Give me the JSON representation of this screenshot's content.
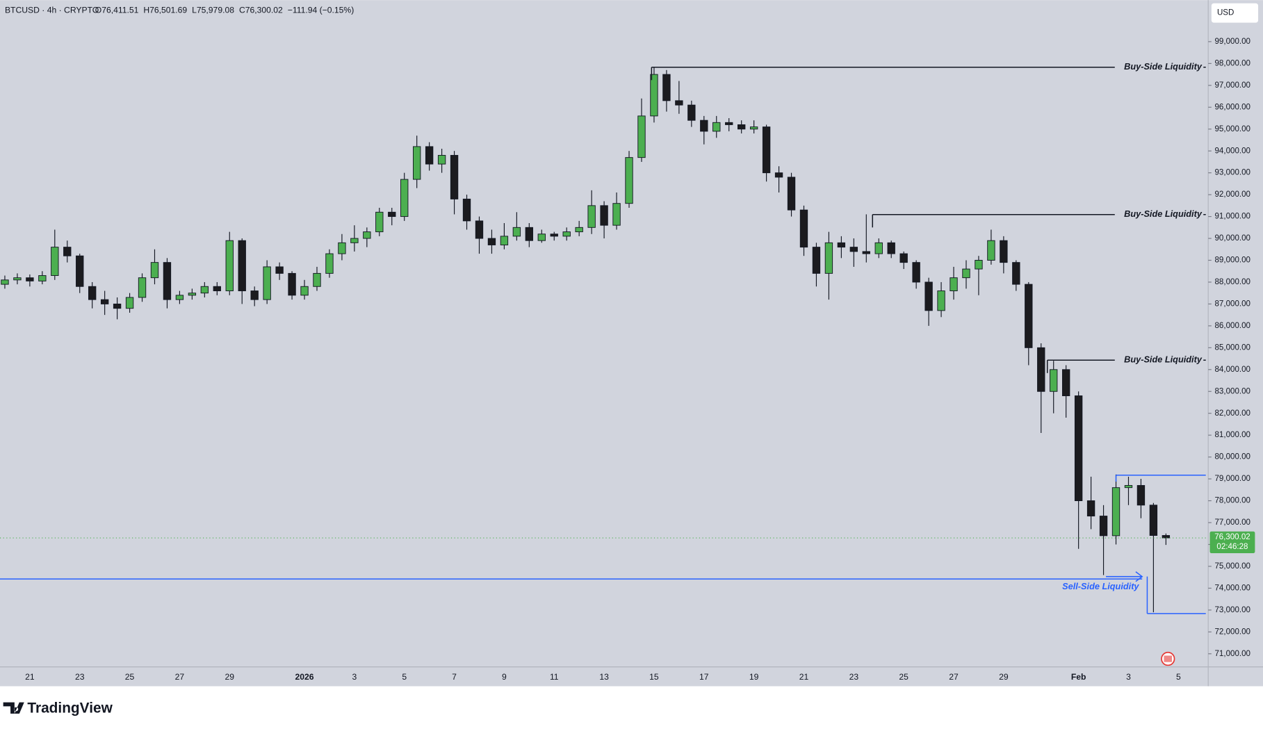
{
  "chart_data": {
    "type": "candlestick",
    "title": "BTCUSD · 4h · CRYPTO",
    "ohlc_header": [
      "O76,411.51",
      "H76,501.69",
      "L75,979.08",
      "C76,300.02",
      "−111.94 (−0.15%)"
    ],
    "currency": "USD",
    "brand": "TradingView",
    "last_price": {
      "value": 76300.02,
      "label": "76,300.02"
    },
    "countdown": "02:46:28",
    "up_color": "#4caf50",
    "down_color": "#1b1b1f",
    "ylim": [
      70400,
      100900
    ],
    "yticks": [
      {
        "value": 71000,
        "label": "71,000.00"
      },
      {
        "value": 72000,
        "label": "72,000.00"
      },
      {
        "value": 73000,
        "label": "73,000.00"
      },
      {
        "value": 74000,
        "label": "74,000.00"
      },
      {
        "value": 75000,
        "label": "75,000.00"
      },
      {
        "value": 76000,
        "label": "76,000.00"
      },
      {
        "value": 77000,
        "label": "77,000.00"
      },
      {
        "value": 78000,
        "label": "78,000.00"
      },
      {
        "value": 79000,
        "label": "79,000.00"
      },
      {
        "value": 80000,
        "label": "80,000.00"
      },
      {
        "value": 81000,
        "label": "81,000.00"
      },
      {
        "value": 82000,
        "label": "82,000.00"
      },
      {
        "value": 83000,
        "label": "83,000.00"
      },
      {
        "value": 84000,
        "label": "84,000.00"
      },
      {
        "value": 85000,
        "label": "85,000.00"
      },
      {
        "value": 86000,
        "label": "86,000.00"
      },
      {
        "value": 87000,
        "label": "87,000.00"
      },
      {
        "value": 88000,
        "label": "88,000.00"
      },
      {
        "value": 89000,
        "label": "89,000.00"
      },
      {
        "value": 90000,
        "label": "90,000.00"
      },
      {
        "value": 91000,
        "label": "91,000.00"
      },
      {
        "value": 92000,
        "label": "92,000.00"
      },
      {
        "value": 93000,
        "label": "93,000.00"
      },
      {
        "value": 94000,
        "label": "94,000.00"
      },
      {
        "value": 95000,
        "label": "95,000.00"
      },
      {
        "value": 96000,
        "label": "96,000.00"
      },
      {
        "value": 97000,
        "label": "97,000.00"
      },
      {
        "value": 98000,
        "label": "98,000.00"
      },
      {
        "value": 99000,
        "label": "99,000.00"
      }
    ],
    "categories": [
      null,
      null,
      "21",
      null,
      null,
      null,
      "23",
      null,
      null,
      null,
      "25",
      null,
      null,
      null,
      "27",
      null,
      null,
      null,
      "29",
      null,
      null,
      null,
      null,
      null,
      "2026",
      null,
      null,
      null,
      "3",
      null,
      null,
      null,
      "5",
      null,
      null,
      null,
      "7",
      null,
      null,
      null,
      "9",
      null,
      null,
      null,
      "11",
      null,
      null,
      null,
      "13",
      null,
      null,
      null,
      "15",
      null,
      null,
      null,
      "17",
      null,
      null,
      null,
      "19",
      null,
      null,
      null,
      "21",
      null,
      null,
      null,
      "23",
      null,
      null,
      null,
      "25",
      null,
      null,
      null,
      "27",
      null,
      null,
      null,
      "29",
      null,
      null,
      null,
      null,
      null,
      "Feb",
      null,
      null,
      null,
      "3",
      null,
      null,
      null,
      "5",
      null,
      null
    ],
    "open": [
      87900,
      88100,
      88200,
      88050,
      88300,
      89600,
      89200,
      87800,
      87200,
      87000,
      86800,
      87300,
      88200,
      88900,
      87200,
      87400,
      87500,
      87800,
      87600,
      89900,
      87600,
      87200,
      88700,
      88400,
      87400,
      87800,
      88400,
      89300,
      89800,
      90000,
      90300,
      91200,
      91000,
      92700,
      94200,
      93400,
      93800,
      91800,
      90800,
      90000,
      89700,
      90100,
      90500,
      89900,
      90200,
      90100,
      90300,
      90500,
      91500,
      90600,
      91600,
      93700,
      95600,
      97500,
      96300,
      96100,
      95400,
      94900,
      95300,
      95200,
      95000,
      95100,
      93000,
      92800,
      91300,
      89600,
      88400,
      89800,
      89600,
      89400,
      89300,
      89800,
      89300,
      88900,
      88000,
      86700,
      87600,
      88200,
      88600,
      89000,
      89900,
      88900,
      87900,
      85000,
      83000,
      84000,
      82800,
      78000,
      77300,
      76400,
      78600,
      78700,
      77800,
      76411.51,
      null,
      null,
      null
    ],
    "high": [
      88300,
      88400,
      88350,
      88500,
      90400,
      89900,
      89300,
      88000,
      87600,
      87300,
      87500,
      88400,
      89500,
      89100,
      87600,
      87700,
      88000,
      88000,
      90300,
      90000,
      87800,
      89000,
      88900,
      88500,
      88100,
      88700,
      89500,
      90200,
      90600,
      90500,
      91400,
      91400,
      93000,
      94700,
      94400,
      94100,
      94000,
      92000,
      91000,
      90400,
      90700,
      91200,
      90700,
      90400,
      90300,
      90500,
      90800,
      92200,
      91700,
      92100,
      94000,
      96400,
      97850,
      97700,
      97200,
      96300,
      95600,
      95600,
      95500,
      95400,
      95400,
      95200,
      93300,
      93000,
      91500,
      89800,
      90300,
      90100,
      90000,
      91100,
      90000,
      89900,
      89400,
      89000,
      88200,
      88000,
      88700,
      89000,
      89200,
      90400,
      90100,
      89000,
      88000,
      85200,
      84400,
      84200,
      83000,
      79100,
      77800,
      79200,
      79100,
      79000,
      77900,
      76501.69,
      null,
      null,
      null
    ],
    "low": [
      87700,
      87900,
      87800,
      87900,
      88100,
      88900,
      87500,
      86800,
      86500,
      86300,
      86600,
      87100,
      87900,
      86800,
      87000,
      87200,
      87300,
      87400,
      87400,
      87000,
      86900,
      87000,
      88100,
      87200,
      87200,
      87600,
      88200,
      89000,
      89400,
      89600,
      90100,
      90600,
      90800,
      92300,
      93100,
      93000,
      91100,
      90400,
      89300,
      89300,
      89500,
      89900,
      89600,
      89800,
      89900,
      89900,
      90100,
      90200,
      90000,
      90400,
      91400,
      93500,
      95300,
      95800,
      95700,
      95100,
      94300,
      94600,
      94900,
      94800,
      94800,
      92600,
      92100,
      91000,
      89200,
      87800,
      87200,
      89100,
      88700,
      88900,
      89100,
      89100,
      88600,
      87700,
      86000,
      86400,
      87200,
      87700,
      87400,
      88800,
      88400,
      87600,
      84200,
      81100,
      82000,
      81800,
      75800,
      76700,
      74600,
      76000,
      77800,
      77200,
      72900,
      75979.08,
      null,
      null,
      null
    ],
    "close": [
      88100,
      88200,
      88050,
      88300,
      89600,
      89200,
      87800,
      87200,
      87000,
      86800,
      87300,
      88200,
      88900,
      87200,
      87400,
      87500,
      87800,
      87600,
      89900,
      87600,
      87200,
      88700,
      88400,
      87400,
      87800,
      88400,
      89300,
      89800,
      90000,
      90300,
      91200,
      91000,
      92700,
      94200,
      93400,
      93800,
      91800,
      90800,
      90000,
      89700,
      90100,
      90500,
      89900,
      90200,
      90100,
      90300,
      90500,
      91500,
      90600,
      91600,
      93700,
      95600,
      97500,
      96300,
      96100,
      95400,
      94900,
      95300,
      95200,
      95000,
      95100,
      93000,
      92800,
      91300,
      89600,
      88400,
      89800,
      89600,
      89400,
      89300,
      89800,
      89300,
      88900,
      88000,
      86700,
      87600,
      88200,
      88600,
      89000,
      89900,
      88900,
      87900,
      85000,
      83000,
      84000,
      82800,
      78000,
      77300,
      76400,
      78600,
      78700,
      77800,
      76411.51,
      76300.02,
      null,
      null,
      null
    ],
    "annotations": [
      {
        "text": "Buy-Side Liquidity",
        "value": 97830,
        "color": "#131722"
      },
      {
        "text": "Buy-Side Liquidity",
        "value": 91090,
        "color": "#131722"
      },
      {
        "text": "Buy-Side Liquidity",
        "value": 84430,
        "color": "#131722"
      },
      {
        "text": "Sell-Side Liquidity",
        "value": 74420,
        "color": "#2962ff"
      }
    ],
    "levels": [
      {
        "value": 79170,
        "color": "#2962ff"
      },
      {
        "value": 72840,
        "color": "#2962ff"
      }
    ]
  }
}
